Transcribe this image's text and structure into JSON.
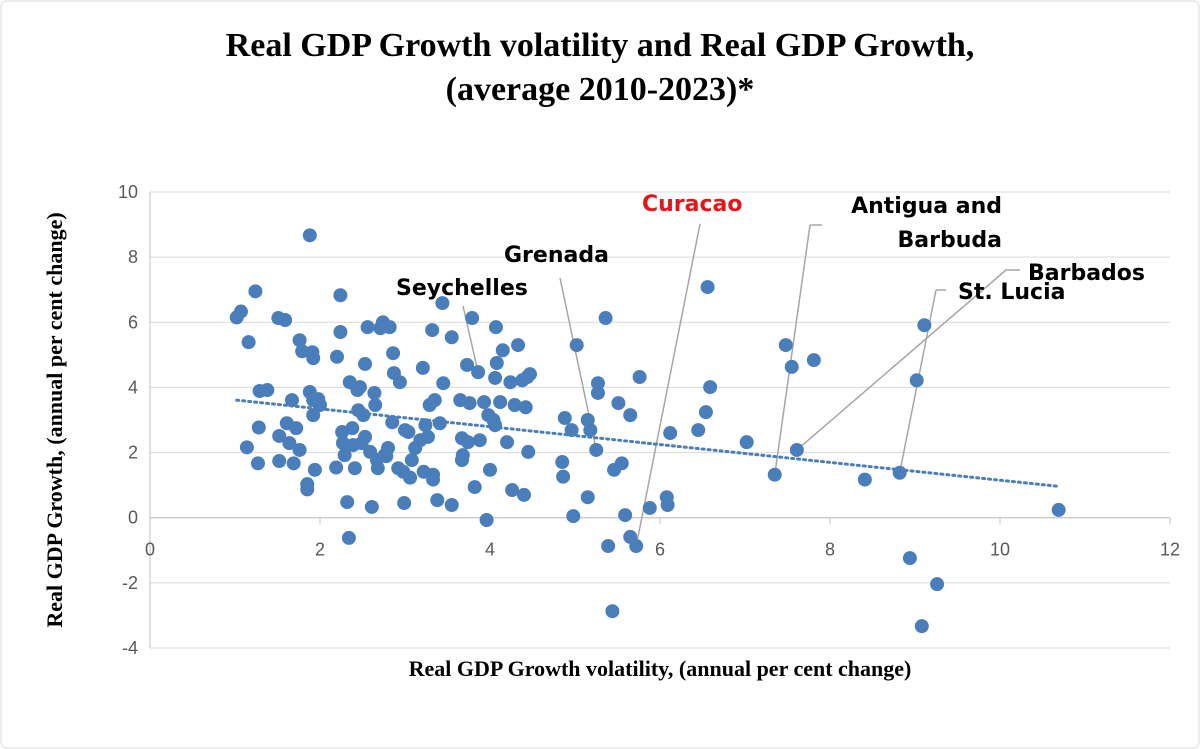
{
  "chart_data": {
    "type": "scatter",
    "title": "Real GDP Growth volatility and Real GDP Growth,",
    "subtitle": "(average 2010-2023)*",
    "xlabel": "Real GDP Growth volatility, (annual per cent change)",
    "ylabel": "Real GDP Growth,  (annual per cent change)",
    "xlim": [
      0,
      12
    ],
    "xticks": [
      0,
      2,
      4,
      6,
      8,
      10,
      12
    ],
    "ylim": [
      -4,
      10
    ],
    "yticks": [
      -4,
      -2,
      0,
      2,
      4,
      6,
      8,
      10
    ],
    "grid": true,
    "series": [
      {
        "color": "#4a7ebb",
        "x": [
          1.02,
          1.07,
          1.24,
          1.16,
          1.14,
          1.28,
          1.27,
          1.29,
          1.38,
          1.51,
          1.59,
          1.88,
          1.52,
          1.52,
          1.61,
          1.64,
          1.67,
          1.69,
          1.72,
          1.76,
          1.79,
          1.76,
          1.85,
          1.85,
          1.88,
          1.91,
          1.92,
          1.92,
          1.92,
          1.94,
          1.98,
          2.0,
          2.2,
          2.19,
          2.24,
          2.24,
          2.26,
          2.27,
          2.29,
          2.32,
          2.34,
          2.35,
          2.38,
          2.39,
          2.41,
          2.44,
          2.45,
          2.47,
          2.49,
          2.51,
          2.53,
          2.53,
          2.56,
          2.59,
          2.61,
          2.64,
          2.65,
          2.67,
          2.68,
          2.71,
          2.74,
          2.76,
          2.78,
          2.8,
          2.82,
          2.85,
          2.86,
          2.87,
          2.92,
          2.94,
          2.98,
          2.99,
          3.0,
          3.04,
          3.06,
          3.08,
          3.12,
          3.18,
          3.21,
          3.22,
          3.24,
          3.27,
          3.29,
          3.32,
          3.33,
          3.33,
          3.35,
          3.38,
          3.41,
          3.44,
          3.45,
          3.55,
          3.55,
          3.65,
          3.67,
          3.67,
          3.68,
          3.73,
          3.74,
          3.76,
          3.79,
          3.82,
          3.86,
          3.88,
          3.93,
          3.96,
          3.98,
          4.0,
          4.04,
          4.06,
          4.06,
          4.07,
          4.08,
          4.12,
          4.15,
          4.2,
          4.24,
          4.26,
          4.29,
          4.33,
          4.38,
          4.4,
          4.42,
          4.44,
          4.45,
          4.47,
          4.85,
          4.86,
          4.88,
          4.96,
          4.98,
          5.02,
          5.15,
          5.15,
          5.18,
          5.25,
          5.27,
          5.27,
          5.36,
          5.39,
          5.44,
          5.46,
          5.51,
          5.55,
          5.59,
          5.65,
          5.65,
          5.72,
          5.76,
          5.88,
          6.08,
          6.09,
          6.12,
          6.45,
          6.54,
          6.56,
          6.59,
          7.02,
          7.35,
          7.48,
          7.55,
          7.61,
          7.81,
          8.41,
          8.82,
          8.94,
          9.02,
          9.11,
          9.08,
          9.26,
          10.69
        ],
        "values": [
          6.15,
          6.33,
          6.95,
          5.39,
          2.16,
          2.77,
          1.67,
          3.89,
          3.92,
          6.13,
          6.07,
          8.67,
          2.51,
          1.74,
          2.9,
          2.29,
          3.61,
          1.67,
          2.75,
          5.45,
          5.11,
          2.08,
          1.03,
          0.87,
          3.86,
          5.08,
          4.9,
          3.61,
          3.15,
          1.47,
          3.64,
          3.46,
          4.94,
          1.54,
          6.83,
          5.7,
          2.63,
          2.29,
          1.92,
          0.48,
          -0.62,
          4.16,
          2.75,
          2.23,
          1.52,
          3.92,
          3.3,
          4.01,
          2.29,
          3.15,
          2.48,
          4.72,
          5.85,
          2.02,
          0.33,
          3.83,
          3.46,
          1.77,
          1.52,
          5.82,
          6.0,
          1.92,
          1.89,
          2.14,
          5.85,
          2.93,
          5.05,
          4.44,
          1.52,
          4.16,
          1.41,
          0.45,
          2.69,
          2.63,
          1.23,
          1.77,
          2.14,
          2.38,
          4.6,
          1.41,
          2.84,
          2.48,
          3.46,
          5.76,
          1.32,
          1.17,
          3.61,
          0.54,
          2.9,
          6.59,
          4.13,
          5.54,
          0.39,
          3.61,
          2.44,
          1.77,
          1.92,
          4.69,
          2.32,
          3.52,
          6.13,
          0.94,
          4.47,
          2.38,
          3.55,
          -0.07,
          3.15,
          1.47,
          3.0,
          2.84,
          4.29,
          5.85,
          4.75,
          3.55,
          5.14,
          2.32,
          4.16,
          0.85,
          3.46,
          5.3,
          4.22,
          0.7,
          3.39,
          4.32,
          2.02,
          4.41,
          1.71,
          1.26,
          3.06,
          2.69,
          0.05,
          5.3,
          0.63,
          3.0,
          2.69,
          2.08,
          4.13,
          3.83,
          6.13,
          -0.87,
          -2.87,
          1.47,
          3.52,
          1.67,
          0.08,
          3.15,
          -0.59,
          -0.87,
          4.32,
          0.3,
          0.63,
          0.39,
          2.6,
          2.69,
          3.24,
          7.08,
          4.01,
          2.32,
          1.32,
          5.3,
          4.63,
          2.08,
          4.84,
          1.17,
          1.38,
          -1.24,
          4.22,
          5.91,
          -3.33,
          -2.04,
          0.24
        ]
      }
    ],
    "trendline": {
      "color": "#4a7ebb",
      "x": [
        1.02,
        10.7
      ],
      "values": [
        3.61,
        0.96
      ]
    },
    "annotations": [
      {
        "text": "Seychelles",
        "x": 3.86,
        "y": 4.47,
        "color": "#000000"
      },
      {
        "text": "Grenada",
        "x": 5.25,
        "y": 2.08,
        "color": "#000000"
      },
      {
        "text": "Curacao",
        "x": 5.72,
        "y": -0.87,
        "color": "#e8141b"
      },
      {
        "text": "Antigua and Barbuda",
        "x": 7.35,
        "y": 1.32,
        "color": "#000000"
      },
      {
        "text": "Barbados",
        "x": 7.61,
        "y": 2.08,
        "color": "#000000"
      },
      {
        "text": "St. Lucia",
        "x": 8.82,
        "y": 1.38,
        "color": "#000000"
      }
    ]
  }
}
